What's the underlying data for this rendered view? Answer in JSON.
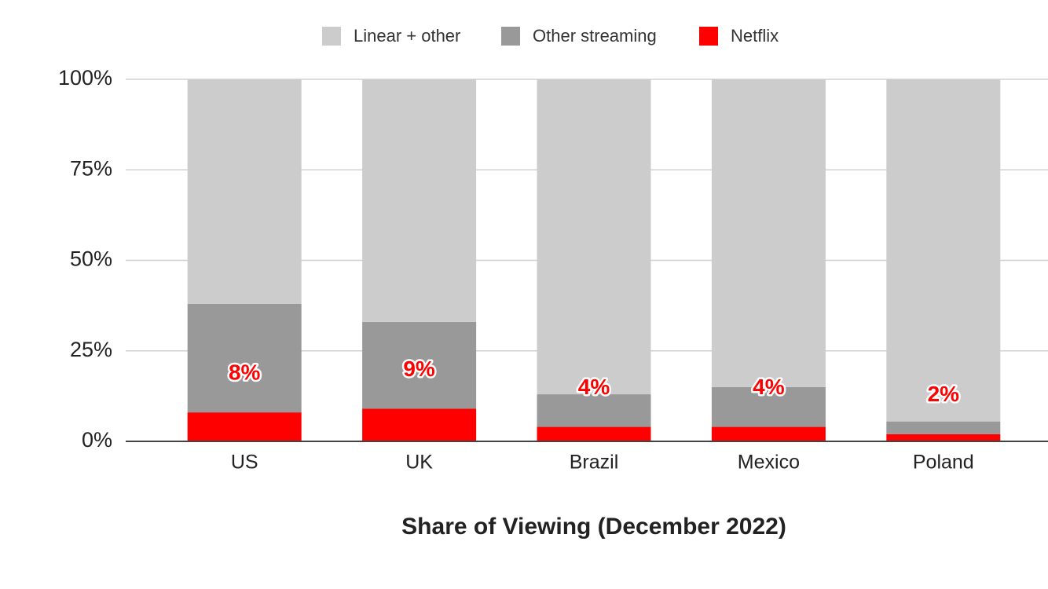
{
  "chart_data": {
    "type": "stacked-bar",
    "x_label": "Share of Viewing (December 2022)",
    "categories": [
      "US",
      "UK",
      "Brazil",
      "Mexico",
      "Poland"
    ],
    "series": [
      {
        "name": "Linear + other",
        "color": "#cccccc",
        "values": [
          62,
          67,
          87,
          85,
          94.5
        ]
      },
      {
        "name": "Other streaming",
        "color": "#999999",
        "values": [
          30,
          24,
          9,
          11,
          3.5
        ]
      },
      {
        "name": "Netflix",
        "color": "#ff0000",
        "values": [
          8,
          9,
          4,
          4,
          2
        ],
        "value_labels": [
          "8%",
          "9%",
          "4%",
          "4%",
          "2%"
        ]
      }
    ],
    "ylim": [
      0,
      100
    ],
    "yticks": [
      {
        "value": 0,
        "label": "0%"
      },
      {
        "value": 25,
        "label": "25%"
      },
      {
        "value": 50,
        "label": "50%"
      },
      {
        "value": 75,
        "label": "75%"
      },
      {
        "value": 100,
        "label": "100%"
      }
    ],
    "grid": true,
    "legend": "top"
  }
}
